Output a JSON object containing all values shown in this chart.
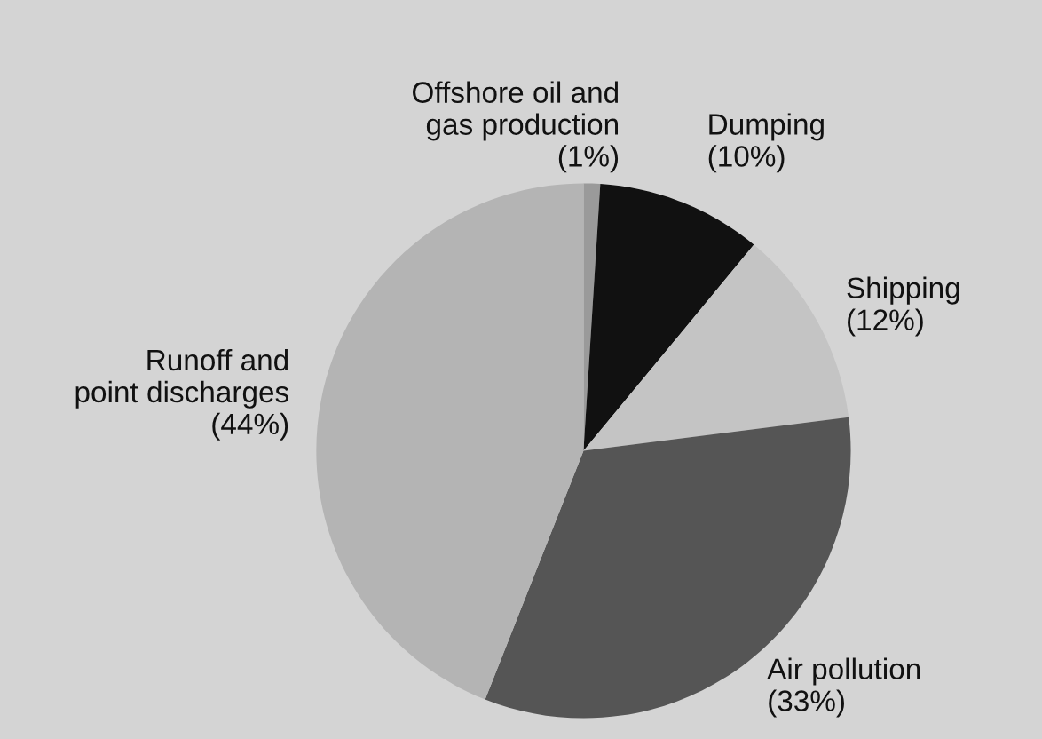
{
  "chart_data": {
    "type": "pie",
    "categories": [
      "Offshore oil and\ngas production",
      "Dumping",
      "Shipping",
      "Air pollution",
      "Runoff and\npoint discharges"
    ],
    "values": [
      1,
      10,
      12,
      33,
      44
    ],
    "value_labels": [
      "(1%)",
      "(10%)",
      "(12%)",
      "(33%)",
      "(44%)"
    ],
    "colors": [
      "#9a9a9a",
      "#111111",
      "#c4c4c4",
      "#555555",
      "#b4b4b4"
    ],
    "legend": false
  }
}
